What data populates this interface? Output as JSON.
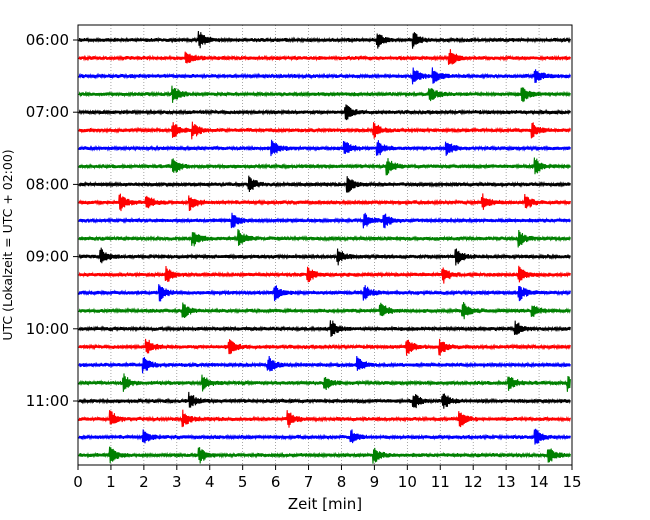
{
  "chart_data": {
    "type": "line",
    "title": "",
    "xlabel": "Zeit  [min]",
    "ylabel": "UTC (Lokalzeit = UTC + 02:00)",
    "xlim": [
      0,
      15
    ],
    "x_ticks": [
      "0",
      "1",
      "2",
      "3",
      "4",
      "5",
      "6",
      "7",
      "8",
      "9",
      "10",
      "11",
      "12",
      "13",
      "14",
      "15"
    ],
    "y_ticks": [
      "06:00",
      "07:00",
      "08:00",
      "09:00",
      "10:00",
      "11:00"
    ],
    "row_interval_minutes": 15,
    "grid": "vertical dotted",
    "trace_colors": [
      "#000000",
      "#ff0000",
      "#0000ff",
      "#008000"
    ],
    "series": [
      {
        "start": "06:00",
        "color": "#000000",
        "events": [
          9.1,
          10.2,
          3.7
        ]
      },
      {
        "start": "06:15",
        "color": "#ff0000",
        "events": [
          11.3,
          3.3
        ]
      },
      {
        "start": "06:30",
        "color": "#0000ff",
        "events": [
          10.2,
          10.8,
          13.9
        ]
      },
      {
        "start": "06:45",
        "color": "#008000",
        "events": [
          2.9,
          10.7,
          13.5
        ]
      },
      {
        "start": "07:00",
        "color": "#000000",
        "events": [
          8.15
        ]
      },
      {
        "start": "07:15",
        "color": "#ff0000",
        "events": [
          2.9,
          3.5,
          9.0,
          13.8
        ]
      },
      {
        "start": "07:30",
        "color": "#0000ff",
        "events": [
          5.9,
          8.1,
          9.1,
          11.2
        ]
      },
      {
        "start": "07:45",
        "color": "#008000",
        "events": [
          2.9,
          9.4,
          13.9
        ]
      },
      {
        "start": "08:00",
        "color": "#000000",
        "events": [
          5.2,
          8.2
        ]
      },
      {
        "start": "08:15",
        "color": "#ff0000",
        "events": [
          1.3,
          2.1,
          3.4,
          12.3,
          13.6
        ]
      },
      {
        "start": "08:30",
        "color": "#0000ff",
        "events": [
          4.7,
          8.7,
          9.3
        ]
      },
      {
        "start": "08:45",
        "color": "#008000",
        "events": [
          3.5,
          4.9,
          13.4
        ]
      },
      {
        "start": "09:00",
        "color": "#000000",
        "events": [
          0.7,
          7.9,
          11.5
        ]
      },
      {
        "start": "09:15",
        "color": "#ff0000",
        "events": [
          2.7,
          7.0,
          11.1,
          13.4
        ]
      },
      {
        "start": "09:30",
        "color": "#0000ff",
        "events": [
          2.5,
          6.0,
          8.7,
          13.4
        ]
      },
      {
        "start": "09:45",
        "color": "#008000",
        "events": [
          3.2,
          9.2,
          11.7,
          13.8
        ]
      },
      {
        "start": "10:00",
        "color": "#000000",
        "events": [
          7.7,
          13.3
        ]
      },
      {
        "start": "10:15",
        "color": "#ff0000",
        "events": [
          2.1,
          4.6,
          10.0,
          11.0
        ]
      },
      {
        "start": "10:30",
        "color": "#0000ff",
        "events": [
          2.0,
          5.8,
          8.5
        ]
      },
      {
        "start": "10:45",
        "color": "#008000",
        "events": [
          1.4,
          3.8,
          7.5,
          13.1,
          14.9
        ]
      },
      {
        "start": "11:00",
        "color": "#000000",
        "events": [
          3.4,
          10.2,
          11.1
        ]
      },
      {
        "start": "11:15",
        "color": "#ff0000",
        "events": [
          1.0,
          3.2,
          6.4,
          11.6
        ]
      },
      {
        "start": "11:30",
        "color": "#0000ff",
        "events": [
          2.0,
          8.3,
          13.9
        ]
      },
      {
        "start": "11:45",
        "color": "#008000",
        "events": [
          1.0,
          3.7,
          9.0,
          14.3
        ]
      }
    ]
  }
}
